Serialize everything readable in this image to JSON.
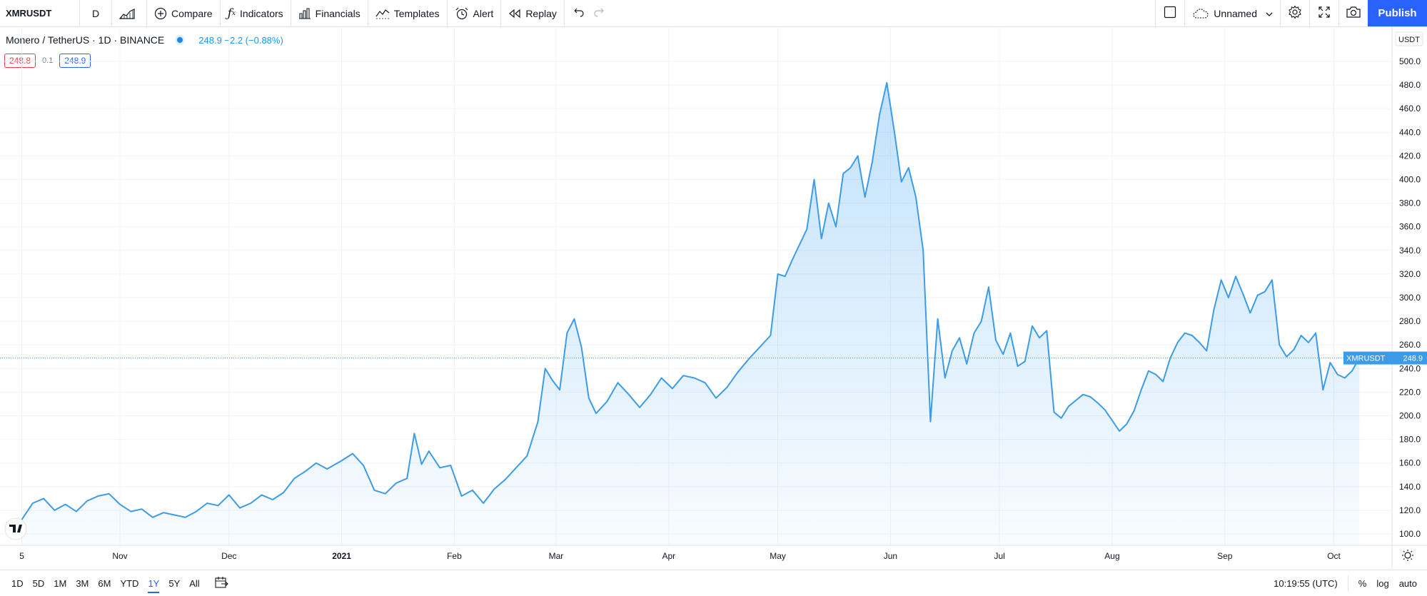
{
  "toolbar": {
    "symbol": "XMRUSDT",
    "interval": "D",
    "compare": "Compare",
    "indicators": "Indicators",
    "financials": "Financials",
    "templates": "Templates",
    "alert": "Alert",
    "replay": "Replay",
    "layout_name": "Unnamed",
    "publish": "Publish"
  },
  "legend": {
    "title": "Monero / TetherUS · 1D · BINANCE",
    "values": "248.9 −2.2 (−0.88%)",
    "sell": "248.8",
    "spread": "0.1",
    "buy": "248.9"
  },
  "price_axis": {
    "currency": "USDT",
    "label": "XMRUSDT",
    "last": "248.9"
  },
  "bottom": {
    "ranges": [
      "1D",
      "5D",
      "1M",
      "3M",
      "6M",
      "YTD",
      "1Y",
      "5Y",
      "All"
    ],
    "active_range": "1Y",
    "time": "10:19:55 (UTC)",
    "percent": "%",
    "log": "log",
    "auto": "auto"
  },
  "colors": {
    "line": "#3d9be9",
    "fill": "#2196f3",
    "accent": "#2962ff",
    "sell": "#f23645"
  },
  "chart_data": {
    "type": "area",
    "ylim": [
      90,
      515
    ],
    "yticks": [
      100,
      120,
      140,
      160,
      180,
      200,
      220,
      240,
      260,
      280,
      300,
      320,
      340,
      360,
      380,
      400,
      420,
      440,
      460,
      480,
      500
    ],
    "ytick_labels": [
      "100.0",
      "120.0",
      "140.0",
      "160.0",
      "180.0",
      "200.0",
      "220.0",
      "240.0",
      "260.0",
      "280.0",
      "300.0",
      "320.0",
      "340.0",
      "360.0",
      "380.0",
      "400.0",
      "420.0",
      "440.0",
      "460.0",
      "480.0",
      "500.0"
    ],
    "xtick_labels": [
      {
        "label": "5",
        "date": "2020-10-05"
      },
      {
        "label": "Nov",
        "date": "2020-11-01"
      },
      {
        "label": "Dec",
        "date": "2020-12-01"
      },
      {
        "label": "2021",
        "date": "2021-01-01",
        "bold": true
      },
      {
        "label": "Feb",
        "date": "2021-02-01"
      },
      {
        "label": "Mar",
        "date": "2021-03-01"
      },
      {
        "label": "Apr",
        "date": "2021-04-01"
      },
      {
        "label": "May",
        "date": "2021-05-01"
      },
      {
        "label": "Jun",
        "date": "2021-06-01"
      },
      {
        "label": "Jul",
        "date": "2021-07-01"
      },
      {
        "label": "Aug",
        "date": "2021-08-01"
      },
      {
        "label": "Sep",
        "date": "2021-09-01"
      },
      {
        "label": "Oct",
        "date": "2021-10-01"
      }
    ],
    "last_value": 248.9,
    "series": [
      {
        "points": [
          [
            "2020-10-05",
            112
          ],
          [
            "2020-10-08",
            126
          ],
          [
            "2020-10-11",
            130
          ],
          [
            "2020-10-14",
            120
          ],
          [
            "2020-10-17",
            125
          ],
          [
            "2020-10-20",
            119
          ],
          [
            "2020-10-23",
            128
          ],
          [
            "2020-10-26",
            132
          ],
          [
            "2020-10-29",
            134
          ],
          [
            "2020-11-01",
            125
          ],
          [
            "2020-11-04",
            119
          ],
          [
            "2020-11-07",
            121
          ],
          [
            "2020-11-10",
            114
          ],
          [
            "2020-11-13",
            118
          ],
          [
            "2020-11-16",
            116
          ],
          [
            "2020-11-19",
            114
          ],
          [
            "2020-11-22",
            119
          ],
          [
            "2020-11-25",
            126
          ],
          [
            "2020-11-28",
            124
          ],
          [
            "2020-12-01",
            133
          ],
          [
            "2020-12-04",
            122
          ],
          [
            "2020-12-07",
            126
          ],
          [
            "2020-12-10",
            133
          ],
          [
            "2020-12-13",
            129
          ],
          [
            "2020-12-16",
            135
          ],
          [
            "2020-12-19",
            147
          ],
          [
            "2020-12-22",
            153
          ],
          [
            "2020-12-25",
            160
          ],
          [
            "2020-12-28",
            155
          ],
          [
            "2021-01-01",
            162
          ],
          [
            "2021-01-04",
            168
          ],
          [
            "2021-01-07",
            158
          ],
          [
            "2021-01-10",
            137
          ],
          [
            "2021-01-13",
            134
          ],
          [
            "2021-01-16",
            143
          ],
          [
            "2021-01-19",
            147
          ],
          [
            "2021-01-21",
            185
          ],
          [
            "2021-01-23",
            159
          ],
          [
            "2021-01-25",
            170
          ],
          [
            "2021-01-28",
            156
          ],
          [
            "2021-01-31",
            158
          ],
          [
            "2021-02-03",
            132
          ],
          [
            "2021-02-06",
            137
          ],
          [
            "2021-02-09",
            126
          ],
          [
            "2021-02-12",
            138
          ],
          [
            "2021-02-15",
            146
          ],
          [
            "2021-02-18",
            156
          ],
          [
            "2021-02-21",
            166
          ],
          [
            "2021-02-24",
            195
          ],
          [
            "2021-02-26",
            240
          ],
          [
            "2021-02-28",
            230
          ],
          [
            "2021-03-02",
            222
          ],
          [
            "2021-03-04",
            270
          ],
          [
            "2021-03-06",
            282
          ],
          [
            "2021-03-08",
            258
          ],
          [
            "2021-03-10",
            215
          ],
          [
            "2021-03-12",
            202
          ],
          [
            "2021-03-15",
            212
          ],
          [
            "2021-03-18",
            228
          ],
          [
            "2021-03-21",
            218
          ],
          [
            "2021-03-24",
            207
          ],
          [
            "2021-03-27",
            218
          ],
          [
            "2021-03-30",
            232
          ],
          [
            "2021-04-02",
            223
          ],
          [
            "2021-04-05",
            234
          ],
          [
            "2021-04-08",
            232
          ],
          [
            "2021-04-11",
            228
          ],
          [
            "2021-04-14",
            215
          ],
          [
            "2021-04-17",
            224
          ],
          [
            "2021-04-20",
            237
          ],
          [
            "2021-04-23",
            248
          ],
          [
            "2021-04-26",
            258
          ],
          [
            "2021-04-29",
            268
          ],
          [
            "2021-05-01",
            320
          ],
          [
            "2021-05-03",
            318
          ],
          [
            "2021-05-05",
            332
          ],
          [
            "2021-05-07",
            345
          ],
          [
            "2021-05-09",
            358
          ],
          [
            "2021-05-11",
            400
          ],
          [
            "2021-05-13",
            350
          ],
          [
            "2021-05-15",
            380
          ],
          [
            "2021-05-17",
            360
          ],
          [
            "2021-05-19",
            405
          ],
          [
            "2021-05-21",
            410
          ],
          [
            "2021-05-23",
            420
          ],
          [
            "2021-05-25",
            385
          ],
          [
            "2021-05-27",
            415
          ],
          [
            "2021-05-29",
            455
          ],
          [
            "2021-05-31",
            482
          ],
          [
            "2021-06-02",
            442
          ],
          [
            "2021-06-04",
            398
          ],
          [
            "2021-06-06",
            410
          ],
          [
            "2021-06-08",
            385
          ],
          [
            "2021-06-10",
            340
          ],
          [
            "2021-06-12",
            195
          ],
          [
            "2021-06-14",
            282
          ],
          [
            "2021-06-16",
            232
          ],
          [
            "2021-06-18",
            255
          ],
          [
            "2021-06-20",
            266
          ],
          [
            "2021-06-22",
            244
          ],
          [
            "2021-06-24",
            270
          ],
          [
            "2021-06-26",
            280
          ],
          [
            "2021-06-28",
            309
          ],
          [
            "2021-06-30",
            264
          ],
          [
            "2021-07-02",
            252
          ],
          [
            "2021-07-04",
            270
          ],
          [
            "2021-07-06",
            242
          ],
          [
            "2021-07-08",
            246
          ],
          [
            "2021-07-10",
            276
          ],
          [
            "2021-07-12",
            266
          ],
          [
            "2021-07-14",
            272
          ],
          [
            "2021-07-16",
            203
          ],
          [
            "2021-07-18",
            198
          ],
          [
            "2021-07-20",
            208
          ],
          [
            "2021-07-22",
            213
          ],
          [
            "2021-07-24",
            218
          ],
          [
            "2021-07-26",
            216
          ],
          [
            "2021-07-28",
            211
          ],
          [
            "2021-07-30",
            205
          ],
          [
            "2021-08-01",
            196
          ],
          [
            "2021-08-03",
            187
          ],
          [
            "2021-08-05",
            193
          ],
          [
            "2021-08-07",
            204
          ],
          [
            "2021-08-09",
            222
          ],
          [
            "2021-08-11",
            238
          ],
          [
            "2021-08-13",
            235
          ],
          [
            "2021-08-15",
            229
          ],
          [
            "2021-08-17",
            249
          ],
          [
            "2021-08-19",
            262
          ],
          [
            "2021-08-21",
            270
          ],
          [
            "2021-08-23",
            268
          ],
          [
            "2021-08-25",
            262
          ],
          [
            "2021-08-27",
            255
          ],
          [
            "2021-08-29",
            290
          ],
          [
            "2021-08-31",
            315
          ],
          [
            "2021-09-02",
            300
          ],
          [
            "2021-09-04",
            318
          ],
          [
            "2021-09-06",
            303
          ],
          [
            "2021-09-08",
            287
          ],
          [
            "2021-09-10",
            302
          ],
          [
            "2021-09-12",
            305
          ],
          [
            "2021-09-14",
            315
          ],
          [
            "2021-09-16",
            260
          ],
          [
            "2021-09-18",
            250
          ],
          [
            "2021-09-20",
            256
          ],
          [
            "2021-09-22",
            268
          ],
          [
            "2021-09-24",
            262
          ],
          [
            "2021-09-26",
            270
          ],
          [
            "2021-09-28",
            222
          ],
          [
            "2021-09-30",
            245
          ],
          [
            "2021-10-02",
            235
          ],
          [
            "2021-10-04",
            232
          ],
          [
            "2021-10-06",
            238
          ],
          [
            "2021-10-08",
            248.9
          ]
        ]
      }
    ]
  }
}
